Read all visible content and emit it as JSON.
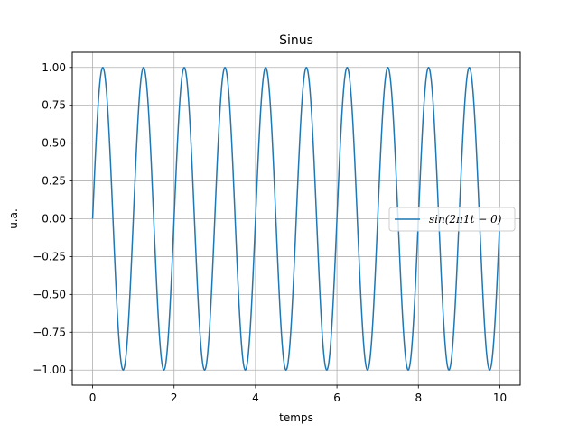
{
  "chart_data": {
    "type": "line",
    "title": "Sinus",
    "xlabel": "temps",
    "ylabel": "u.a.",
    "function": "sin(2*pi*1*t - 0)",
    "frequency": 1,
    "phase": 0,
    "x_range": [
      0,
      10
    ],
    "xlim": [
      -0.5,
      10.5
    ],
    "ylim": [
      -1.1,
      1.1
    ],
    "x_ticks": [
      "0",
      "2",
      "4",
      "6",
      "8",
      "10"
    ],
    "y_ticks": [
      "−1.00",
      "−0.75",
      "−0.50",
      "−0.25",
      "0.00",
      "0.25",
      "0.50",
      "0.75",
      "1.00"
    ],
    "grid": true,
    "legend_position": "center-right",
    "series": [
      {
        "name": "sin(2π1t − 0)",
        "color": "#1f77b4"
      }
    ]
  }
}
